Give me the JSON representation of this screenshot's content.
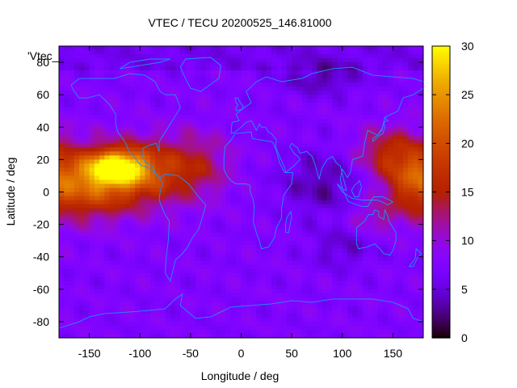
{
  "chart_data": {
    "type": "heatmap",
    "title": "VTEC / TECU 20200525_146.81000",
    "xlabel": "Longitude / deg",
    "ylabel": "Latitude / deg",
    "key_label": "'Vtec_",
    "xlim": [
      -180,
      180
    ],
    "ylim": [
      -90,
      90
    ],
    "xticks": [
      -150,
      -100,
      -50,
      0,
      50,
      100,
      150
    ],
    "yticks": [
      -80,
      -60,
      -40,
      -20,
      0,
      20,
      40,
      60,
      80
    ],
    "colorbar": {
      "range": [
        0,
        30
      ],
      "ticks": [
        0,
        5,
        10,
        15,
        20,
        25,
        30
      ],
      "palette": "gnuplot-rgbformulae-7-5-15",
      "colors": [
        "#000000",
        "#6b00d6",
        "#a800c8",
        "#e0401a",
        "#ff9a00",
        "#ffff00"
      ]
    },
    "grid_resolution": {
      "dlon": 5,
      "dlat": 2.5
    },
    "features": [
      {
        "lon": -125,
        "lat": 15,
        "amp": 17,
        "slon": 28,
        "slat": 10
      },
      {
        "lon": -100,
        "lat": 12,
        "amp": 12,
        "slon": 60,
        "slat": 20
      },
      {
        "lon": -150,
        "lat": 0,
        "amp": 8,
        "slon": 40,
        "slat": 18
      },
      {
        "lon": 170,
        "lat": 10,
        "amp": 10,
        "slon": 30,
        "slat": 22
      },
      {
        "lon": 140,
        "lat": 25,
        "amp": 6,
        "slon": 30,
        "slat": 15
      },
      {
        "lon": 130,
        "lat": -15,
        "amp": 4,
        "slon": 25,
        "slat": 10
      },
      {
        "lon": -40,
        "lat": 20,
        "amp": 3,
        "slon": 30,
        "slat": 20
      },
      {
        "lon": 80,
        "lat": 5,
        "amp": -4,
        "slon": 40,
        "slat": 20
      },
      {
        "lon": 80,
        "lat": 70,
        "amp": -4,
        "slon": 40,
        "slat": 10
      },
      {
        "lon": 100,
        "lat": -35,
        "amp": -3,
        "slon": 30,
        "slat": 12
      }
    ],
    "base_value": 7.5,
    "continent_color": "#1e90ff"
  }
}
